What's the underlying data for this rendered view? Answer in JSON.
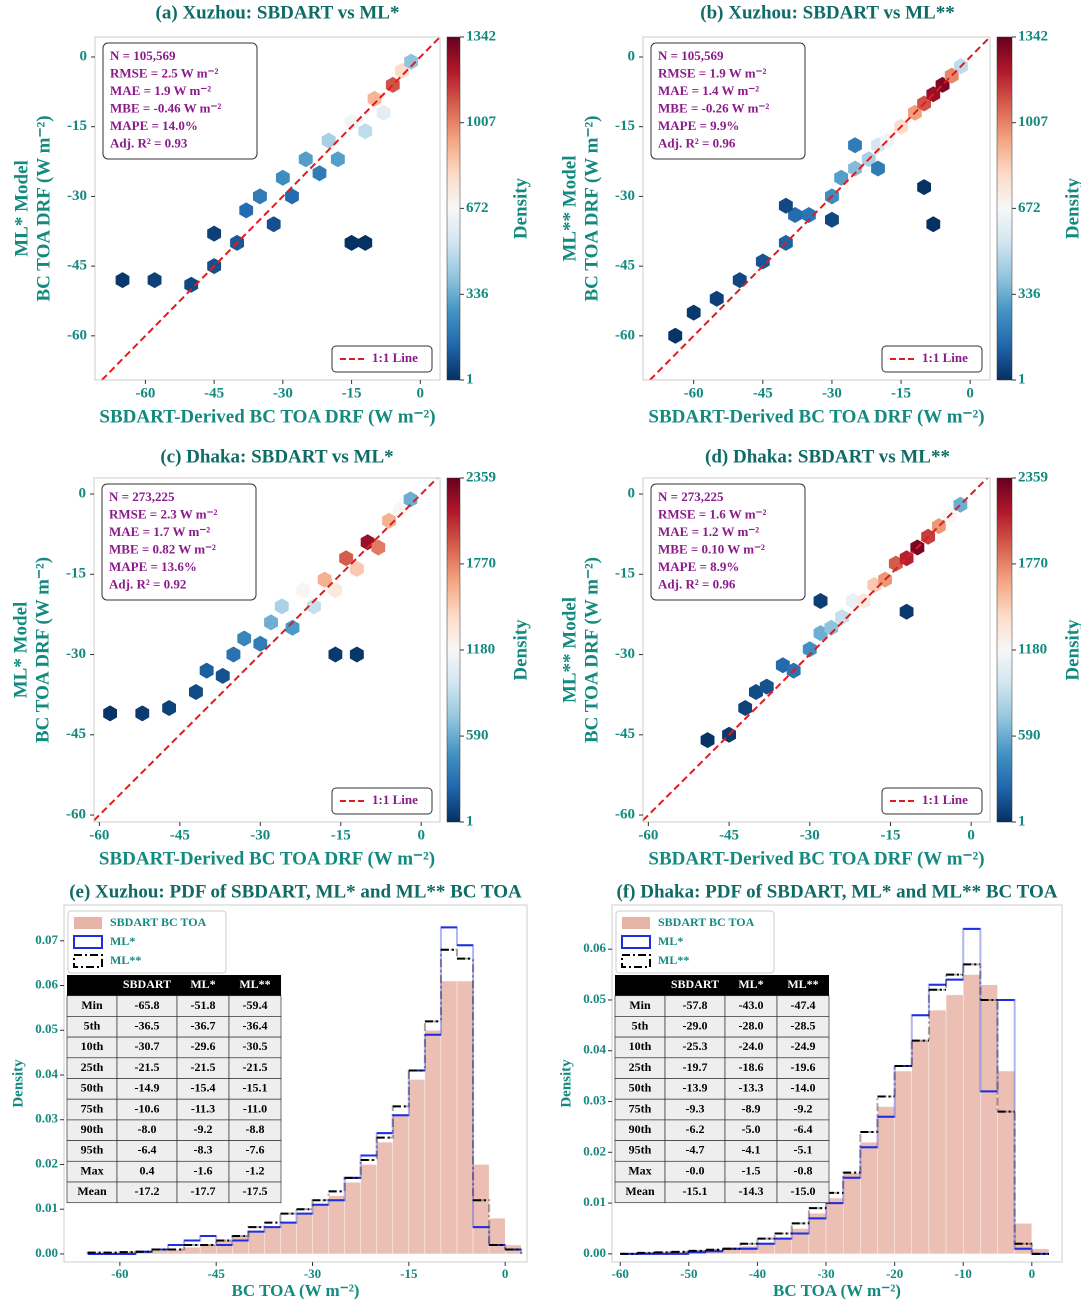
{
  "chart_data": [
    {
      "type": "hexbin",
      "title": "(a) Xuzhou: SBDART vs ML*",
      "xlabel": "SBDART-Derived BC TOA DRF (W m⁻²)",
      "ylabel": [
        "ML* Model",
        "BC TOA DRF (W m⁻²)"
      ],
      "x": [
        -65,
        -58,
        -50,
        -45,
        -40,
        -45,
        -38,
        -35,
        -32,
        -30,
        -28,
        -25,
        -22,
        -20,
        -18,
        -15,
        -12,
        -10,
        -8,
        -6,
        -4,
        -2,
        -15,
        -12
      ],
      "y": [
        -48,
        -48,
        -49,
        -45,
        -40,
        -38,
        -33,
        -30,
        -36,
        -26,
        -30,
        -22,
        -25,
        -18,
        -22,
        -14,
        -16,
        -9,
        -12,
        -6,
        -3,
        -1,
        -40,
        -40
      ],
      "density": [
        20,
        40,
        60,
        80,
        100,
        40,
        150,
        200,
        80,
        250,
        150,
        300,
        200,
        450,
        300,
        650,
        500,
        900,
        600,
        1100,
        800,
        400,
        5,
        5
      ],
      "xlim": [
        -71,
        4.3
      ],
      "ylim": [
        -69.5,
        4.3
      ],
      "xticks": [
        -60,
        -45,
        -30,
        -15,
        0
      ],
      "yticks": [
        -60,
        -45,
        -30,
        -15,
        0
      ],
      "colorbar": {
        "label": "Density",
        "lim": [
          1,
          1342
        ],
        "ticks": [
          1,
          336,
          672,
          1007,
          1342
        ],
        "colormap": "RdBu_r"
      },
      "stats": [
        "N = 105,569",
        "RMSE = 2.5 W m⁻²",
        "MAE = 1.9 W m⁻²",
        "MBE = -0.46 W m⁻²",
        "MAPE = 14.0%",
        "Adj. R² = 0.93"
      ],
      "reference_line": {
        "name": "1:1 Line",
        "color": "#e41a1c"
      }
    },
    {
      "type": "hexbin",
      "title": "(b) Xuzhou: SBDART vs ML**",
      "xlabel": "SBDART-Derived BC TOA DRF (W m⁻²)",
      "ylabel": [
        "ML** Model",
        "BC TOA DRF (W m⁻²)"
      ],
      "x": [
        -64,
        -60,
        -55,
        -50,
        -45,
        -40,
        -38,
        -35,
        -30,
        -28,
        -25,
        -22,
        -20,
        -18,
        -15,
        -12,
        -10,
        -8,
        -6,
        -4,
        -2,
        -10,
        -8,
        -40,
        -30,
        -20,
        -25
      ],
      "y": [
        -60,
        -55,
        -52,
        -48,
        -44,
        -40,
        -34,
        -34,
        -30,
        -26,
        -24,
        -22,
        -19,
        -18,
        -15,
        -12,
        -10,
        -8,
        -6,
        -4,
        -2,
        -28,
        -36,
        -32,
        -35,
        -24,
        -19
      ],
      "density": [
        10,
        20,
        40,
        60,
        90,
        120,
        150,
        180,
        250,
        300,
        380,
        450,
        550,
        650,
        800,
        950,
        1100,
        1250,
        1300,
        1000,
        500,
        5,
        5,
        60,
        60,
        200,
        200
      ],
      "xlim": [
        -71,
        4.3
      ],
      "ylim": [
        -69.5,
        4.3
      ],
      "xticks": [
        -60,
        -45,
        -30,
        -15,
        0
      ],
      "yticks": [
        -60,
        -45,
        -30,
        -15,
        0
      ],
      "colorbar": {
        "label": "Density",
        "lim": [
          1,
          1342
        ],
        "ticks": [
          1,
          336,
          672,
          1007,
          1342
        ],
        "colormap": "RdBu_r"
      },
      "stats": [
        "N = 105,569",
        "RMSE = 1.9 W m⁻²",
        "MAE = 1.4 W m⁻²",
        "MBE = -0.26 W m⁻²",
        "MAPE = 9.9%",
        "Adj. R² = 0.96"
      ],
      "reference_line": {
        "name": "1:1 Line",
        "color": "#e41a1c"
      }
    },
    {
      "type": "hexbin",
      "title": "(c) Dhaka: SBDART vs ML*",
      "xlabel": "SBDART-Derived BC TOA DRF (W m⁻²)",
      "ylabel": [
        "ML* Model",
        "BC TOA DRF (W m⁻²)"
      ],
      "x": [
        -58,
        -52,
        -47,
        -42,
        -40,
        -37,
        -35,
        -33,
        -30,
        -28,
        -26,
        -24,
        -22,
        -20,
        -18,
        -16,
        -14,
        -12,
        -10,
        -8,
        -6,
        -4,
        -2,
        -12,
        -16
      ],
      "y": [
        -41,
        -41,
        -40,
        -37,
        -33,
        -34,
        -30,
        -27,
        -28,
        -24,
        -21,
        -25,
        -18,
        -21,
        -16,
        -18,
        -12,
        -14,
        -9,
        -10,
        -5,
        -3,
        -1,
        -30,
        -30
      ],
      "density": [
        20,
        50,
        80,
        120,
        200,
        150,
        300,
        400,
        350,
        600,
        800,
        500,
        1200,
        900,
        1600,
        1300,
        1900,
        1500,
        2200,
        1800,
        1600,
        1200,
        600,
        30,
        40
      ],
      "xlim": [
        -61,
        3.5
      ],
      "ylim": [
        -61.3,
        3
      ],
      "xticks": [
        -60,
        -45,
        -30,
        -15,
        0
      ],
      "yticks": [
        -60,
        -45,
        -30,
        -15,
        0
      ],
      "colorbar": {
        "label": "Density",
        "lim": [
          1,
          2359
        ],
        "ticks": [
          1,
          590,
          1180,
          1770,
          2359
        ],
        "colormap": "RdBu_r"
      },
      "stats": [
        "N = 273,225",
        "RMSE = 2.3 W m⁻²",
        "MAE = 1.7 W m⁻²",
        "MBE = 0.82 W m⁻²",
        "MAPE = 13.6%",
        "Adj. R² = 0.92"
      ],
      "reference_line": {
        "name": "1:1 Line",
        "color": "#e41a1c"
      }
    },
    {
      "type": "hexbin",
      "title": "(d) Dhaka: SBDART vs ML**",
      "xlabel": "SBDART-Derived BC TOA DRF (W m⁻²)",
      "ylabel": [
        "ML** Model",
        "BC TOA DRF (W m⁻²)"
      ],
      "x": [
        -49,
        -45,
        -42,
        -40,
        -38,
        -35,
        -33,
        -30,
        -28,
        -26,
        -24,
        -22,
        -20,
        -18,
        -16,
        -14,
        -12,
        -10,
        -8,
        -6,
        -4,
        -2,
        -12,
        -28
      ],
      "y": [
        -46,
        -45,
        -40,
        -37,
        -36,
        -32,
        -33,
        -29,
        -26,
        -25,
        -23,
        -20,
        -20,
        -17,
        -16,
        -13,
        -12,
        -10,
        -8,
        -6,
        -4,
        -2,
        -22,
        -20
      ],
      "density": [
        20,
        40,
        80,
        120,
        150,
        250,
        300,
        450,
        600,
        700,
        900,
        1100,
        1300,
        1500,
        1700,
        1900,
        2100,
        2300,
        2000,
        1700,
        1200,
        600,
        40,
        60
      ],
      "xlim": [
        -61,
        3.5
      ],
      "ylim": [
        -61.3,
        3
      ],
      "xticks": [
        -60,
        -45,
        -30,
        -15,
        0
      ],
      "yticks": [
        -60,
        -45,
        -30,
        -15,
        0
      ],
      "colorbar": {
        "label": "Density",
        "lim": [
          1,
          2359
        ],
        "ticks": [
          1,
          590,
          1180,
          1770,
          2359
        ],
        "colormap": "RdBu_r"
      },
      "stats": [
        "N = 273,225",
        "RMSE = 1.6 W m⁻²",
        "MAE = 1.2 W m⁻²",
        "MBE = 0.10 W m⁻²",
        "MAPE = 8.9%",
        "Adj. R² = 0.96"
      ],
      "reference_line": {
        "name": "1:1 Line",
        "color": "#e41a1c"
      }
    },
    {
      "type": "histogram",
      "title": "(e) Xuzhou: PDF of SBDART, ML* and ML** BC TOA",
      "xlabel": "BC TOA (W m⁻²)",
      "ylabel": "Density",
      "bins": [
        -65,
        -62.5,
        -60,
        -57.5,
        -55,
        -52.5,
        -50,
        -47.5,
        -45,
        -42.5,
        -40,
        -37.5,
        -35,
        -32.5,
        -30,
        -27.5,
        -25,
        -22.5,
        -20,
        -17.5,
        -15,
        -12.5,
        -10,
        -7.5,
        -5,
        -2.5,
        0,
        2.5
      ],
      "series": [
        {
          "name": "SBDART BC TOA",
          "color": "#e8b4a8",
          "style": "bar",
          "values": [
            0.0003,
            0.0003,
            0.0005,
            0.0006,
            0.0008,
            0.001,
            0.0015,
            0.002,
            0.003,
            0.004,
            0.005,
            0.006,
            0.007,
            0.009,
            0.011,
            0.013,
            0.016,
            0.02,
            0.025,
            0.031,
            0.039,
            0.05,
            0.061,
            0.061,
            0.02,
            0.008,
            0.002
          ]
        },
        {
          "name": "ML*",
          "color": "#1f2fe0",
          "style": "step",
          "values": [
            0,
            0,
            0,
            0.0005,
            0.001,
            0.002,
            0.003,
            0.004,
            0.002,
            0.003,
            0.005,
            0.006,
            0.007,
            0.009,
            0.011,
            0.012,
            0.017,
            0.022,
            0.027,
            0.031,
            0.041,
            0.049,
            0.073,
            0.069,
            0.006,
            0.002,
            0.001
          ]
        },
        {
          "name": "ML**",
          "color": "#000000",
          "style": "dashdot",
          "values": [
            0.0003,
            0.0003,
            0.0004,
            0.0005,
            0.001,
            0.001,
            0.002,
            0.002,
            0.003,
            0.004,
            0.006,
            0.007,
            0.009,
            0.01,
            0.012,
            0.014,
            0.017,
            0.021,
            0.026,
            0.033,
            0.041,
            0.052,
            0.068,
            0.066,
            0.012,
            0.002,
            0.001
          ]
        }
      ],
      "table": {
        "columns": [
          "SBDART",
          "ML*",
          "ML**"
        ],
        "rows": [
          {
            "label": "Min",
            "values": [
              "-65.8",
              "-51.8",
              "-59.4"
            ]
          },
          {
            "label": "5th",
            "values": [
              "-36.5",
              "-36.7",
              "-36.4"
            ]
          },
          {
            "label": "10th",
            "values": [
              "-30.7",
              "-29.6",
              "-30.5"
            ]
          },
          {
            "label": "25th",
            "values": [
              "-21.5",
              "-21.5",
              "-21.5"
            ]
          },
          {
            "label": "50th",
            "values": [
              "-14.9",
              "-15.4",
              "-15.1"
            ]
          },
          {
            "label": "75th",
            "values": [
              "-10.6",
              "-11.3",
              "-11.0"
            ]
          },
          {
            "label": "90th",
            "values": [
              "-8.0",
              "-9.2",
              "-8.8"
            ]
          },
          {
            "label": "95th",
            "values": [
              "-6.4",
              "-8.3",
              "-7.6"
            ]
          },
          {
            "label": "Max",
            "values": [
              "0.4",
              "-1.6",
              "-1.2"
            ]
          },
          {
            "label": "Mean",
            "values": [
              "-17.2",
              "-17.7",
              "-17.5"
            ]
          }
        ]
      },
      "xlim": [
        -68.7,
        3.4
      ],
      "ylim": [
        -0.0018,
        0.078
      ],
      "xticks": [
        -60,
        -45,
        -30,
        -15,
        0
      ],
      "yticks": [
        {
          "value": 0,
          "label": "0.00"
        },
        {
          "value": 0.01,
          "label": "0.01"
        },
        {
          "value": 0.02,
          "label": "0.02"
        },
        {
          "value": 0.03,
          "label": "0.03"
        },
        {
          "value": 0.04,
          "label": "0.04"
        },
        {
          "value": 0.05,
          "label": "0.05"
        },
        {
          "value": 0.06,
          "label": "0.06"
        },
        {
          "value": 0.07,
          "label": "0.07"
        }
      ]
    },
    {
      "type": "histogram",
      "title": "(f) Dhaka: PDF of SBDART, ML* and ML** BC TOA",
      "xlabel": "BC TOA (W m⁻²)",
      "ylabel": "Density",
      "bins": [
        -60,
        -57.5,
        -55,
        -52.5,
        -50,
        -47.5,
        -45,
        -42.5,
        -40,
        -37.5,
        -35,
        -32.5,
        -30,
        -27.5,
        -25,
        -22.5,
        -20,
        -17.5,
        -15,
        -12.5,
        -10,
        -7.5,
        -5,
        -2.5,
        0,
        2.5
      ],
      "series": [
        {
          "name": "SBDART BC TOA",
          "color": "#e8b4a8",
          "style": "bar",
          "values": [
            0,
            0.0002,
            0.0003,
            0.0004,
            0.0006,
            0.0008,
            0.001,
            0.0015,
            0.002,
            0.003,
            0.005,
            0.008,
            0.011,
            0.016,
            0.022,
            0.029,
            0.036,
            0.042,
            0.048,
            0.051,
            0.055,
            0.053,
            0.036,
            0.006,
            0.001
          ]
        },
        {
          "name": "ML*",
          "color": "#1f2fe0",
          "style": "step",
          "values": [
            0,
            0,
            0,
            0,
            0.0003,
            0.0005,
            0.001,
            0.001,
            0.002,
            0.003,
            0.004,
            0.007,
            0.01,
            0.015,
            0.021,
            0.027,
            0.037,
            0.047,
            0.053,
            0.054,
            0.064,
            0.032,
            0.05,
            0.001,
            0
          ]
        },
        {
          "name": "ML**",
          "color": "#000000",
          "style": "dashdot",
          "values": [
            0,
            0.0002,
            0.0003,
            0.0004,
            0.0006,
            0.0008,
            0.001,
            0.002,
            0.003,
            0.004,
            0.006,
            0.009,
            0.012,
            0.016,
            0.024,
            0.031,
            0.037,
            0.042,
            0.052,
            0.055,
            0.057,
            0.05,
            0.028,
            0.002,
            0
          ]
        }
      ],
      "table": {
        "columns": [
          "SBDART",
          "ML*",
          "ML**"
        ],
        "rows": [
          {
            "label": "Min",
            "values": [
              "-57.8",
              "-43.0",
              "-47.4"
            ]
          },
          {
            "label": "5th",
            "values": [
              "-29.0",
              "-28.0",
              "-28.5"
            ]
          },
          {
            "label": "10th",
            "values": [
              "-25.3",
              "-24.0",
              "-24.9"
            ]
          },
          {
            "label": "25th",
            "values": [
              "-19.7",
              "-18.6",
              "-19.6"
            ]
          },
          {
            "label": "50th",
            "values": [
              "-13.9",
              "-13.3",
              "-14.0"
            ]
          },
          {
            "label": "75th",
            "values": [
              "-9.3",
              "-8.9",
              "-9.2"
            ]
          },
          {
            "label": "90th",
            "values": [
              "-6.2",
              "-5.0",
              "-6.4"
            ]
          },
          {
            "label": "95th",
            "values": [
              "-4.7",
              "-4.1",
              "-5.1"
            ]
          },
          {
            "label": "Max",
            "values": [
              "-0.0",
              "-1.5",
              "-0.8"
            ]
          },
          {
            "label": "Mean",
            "values": [
              "-15.1",
              "-14.3",
              "-15.0"
            ]
          }
        ]
      },
      "xlim": [
        -61.2,
        4.4
      ],
      "ylim": [
        -0.0016,
        0.0687
      ],
      "xticks": [
        -60,
        -50,
        -40,
        -30,
        -20,
        -10,
        0
      ],
      "yticks": [
        {
          "value": 0,
          "label": "0.00"
        },
        {
          "value": 0.01,
          "label": "0.01"
        },
        {
          "value": 0.02,
          "label": "0.02"
        },
        {
          "value": 0.03,
          "label": "0.03"
        },
        {
          "value": 0.04,
          "label": "0.04"
        },
        {
          "value": 0.05,
          "label": "0.05"
        },
        {
          "value": 0.06,
          "label": "0.06"
        }
      ]
    }
  ]
}
